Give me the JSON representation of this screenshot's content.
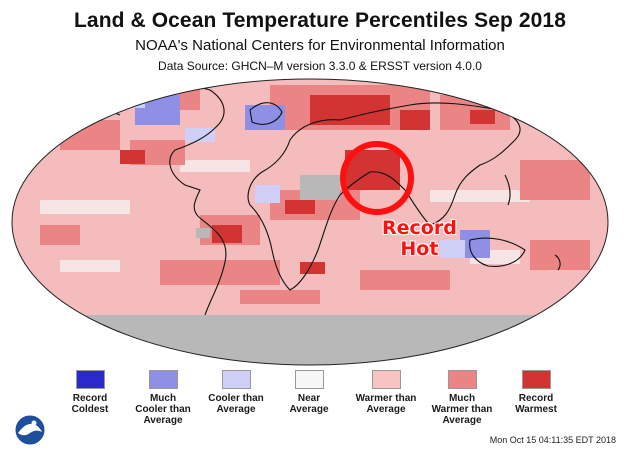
{
  "header": {
    "title": "Land & Ocean Temperature Percentiles Sep 2018",
    "subtitle": "NOAA's National Centers for Environmental Information",
    "source": "Data Source: GHCN–M version 3.3.0 & ERSST version 4.0.0"
  },
  "annotation": {
    "line1": "Record",
    "line2": "Hot",
    "color": "#ff1010"
  },
  "legend": [
    {
      "lines": [
        "Record",
        "Coldest"
      ],
      "color": "#2a2acc"
    },
    {
      "lines": [
        "Much",
        "Cooler than",
        "Average"
      ],
      "color": "#8f8fe6"
    },
    {
      "lines": [
        "Cooler than",
        "Average"
      ],
      "color": "#cfcff7"
    },
    {
      "lines": [
        "Near",
        "Average"
      ],
      "color": "#f7f7f7"
    },
    {
      "lines": [
        "Warmer than",
        "Average"
      ],
      "color": "#f7c3c3"
    },
    {
      "lines": [
        "Much",
        "Warmer than",
        "Average"
      ],
      "color": "#eb8585"
    },
    {
      "lines": [
        "Record",
        "Warmest"
      ],
      "color": "#d23434"
    }
  ],
  "footer": {
    "timestamp": "Mon Oct 15 04:11:35 EDT 2018",
    "logo_text": "NOAA"
  },
  "colors": {
    "map_base": "#f4bcbc",
    "much_warmer": "#eb8585",
    "record_warm": "#d23434",
    "cooler": "#cfcff7",
    "much_cooler": "#8f8fe6",
    "no_data": "#b8b8b8",
    "circle": "#ff1010"
  }
}
